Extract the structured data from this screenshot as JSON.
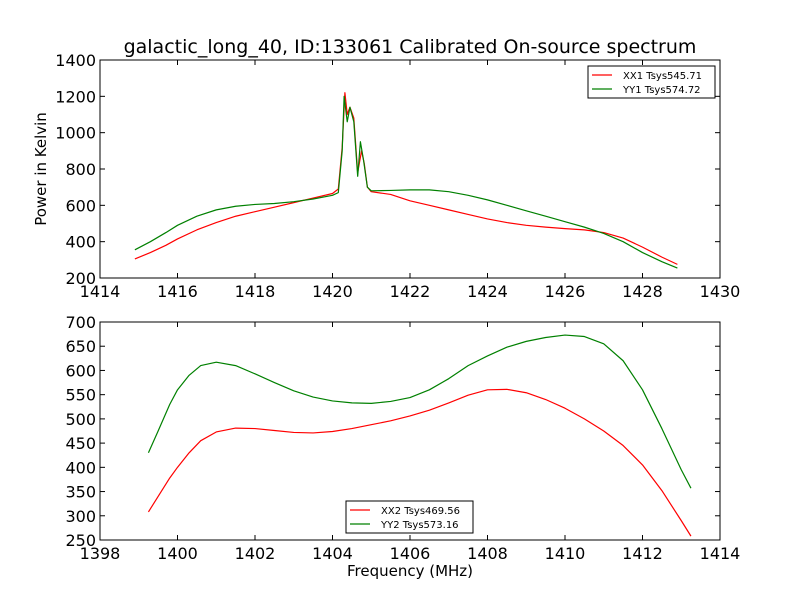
{
  "chart_data": [
    {
      "type": "line",
      "title": "galactic_long_40, ID:133061 Calibrated On-source spectrum",
      "xlabel": "",
      "ylabel": "Power in Kelvin",
      "xlim": [
        1414,
        1430
      ],
      "ylim": [
        200,
        1400
      ],
      "xticks": [
        1414,
        1416,
        1418,
        1420,
        1422,
        1424,
        1426,
        1428,
        1430
      ],
      "yticks": [
        200,
        400,
        600,
        800,
        1000,
        1200,
        1400
      ],
      "grid": false,
      "legend_position": "top-right",
      "series": [
        {
          "name": "XX1 Tsys545.71",
          "color": "#ff0000",
          "points": [
            [
              1414.9,
              305
            ],
            [
              1415.3,
              340
            ],
            [
              1415.7,
              380
            ],
            [
              1416.0,
              415
            ],
            [
              1416.5,
              465
            ],
            [
              1417.0,
              505
            ],
            [
              1417.5,
              540
            ],
            [
              1418.0,
              565
            ],
            [
              1418.5,
              590
            ],
            [
              1419.0,
              615
            ],
            [
              1419.5,
              640
            ],
            [
              1420.0,
              665
            ],
            [
              1420.15,
              690
            ],
            [
              1420.25,
              920
            ],
            [
              1420.32,
              1220
            ],
            [
              1420.38,
              1100
            ],
            [
              1420.45,
              1140
            ],
            [
              1420.55,
              1080
            ],
            [
              1420.65,
              780
            ],
            [
              1420.75,
              900
            ],
            [
              1420.82,
              830
            ],
            [
              1420.9,
              700
            ],
            [
              1421.0,
              675
            ],
            [
              1421.5,
              660
            ],
            [
              1422.0,
              625
            ],
            [
              1422.5,
              600
            ],
            [
              1423.0,
              575
            ],
            [
              1423.5,
              550
            ],
            [
              1424.0,
              525
            ],
            [
              1424.5,
              505
            ],
            [
              1425.0,
              490
            ],
            [
              1425.5,
              480
            ],
            [
              1426.0,
              472
            ],
            [
              1426.5,
              465
            ],
            [
              1427.0,
              450
            ],
            [
              1427.5,
              420
            ],
            [
              1428.0,
              370
            ],
            [
              1428.5,
              315
            ],
            [
              1428.9,
              275
            ]
          ]
        },
        {
          "name": "YY1 Tsys574.72",
          "color": "#008000",
          "points": [
            [
              1414.9,
              355
            ],
            [
              1415.3,
              400
            ],
            [
              1415.7,
              450
            ],
            [
              1416.0,
              490
            ],
            [
              1416.5,
              540
            ],
            [
              1417.0,
              575
            ],
            [
              1417.5,
              595
            ],
            [
              1418.0,
              605
            ],
            [
              1418.5,
              610
            ],
            [
              1419.0,
              620
            ],
            [
              1419.5,
              635
            ],
            [
              1420.0,
              655
            ],
            [
              1420.15,
              670
            ],
            [
              1420.25,
              900
            ],
            [
              1420.3,
              1200
            ],
            [
              1420.38,
              1060
            ],
            [
              1420.45,
              1140
            ],
            [
              1420.55,
              1060
            ],
            [
              1420.65,
              760
            ],
            [
              1420.72,
              950
            ],
            [
              1420.8,
              850
            ],
            [
              1420.9,
              700
            ],
            [
              1421.0,
              680
            ],
            [
              1421.5,
              682
            ],
            [
              1422.0,
              685
            ],
            [
              1422.5,
              685
            ],
            [
              1423.0,
              675
            ],
            [
              1423.5,
              655
            ],
            [
              1424.0,
              630
            ],
            [
              1424.5,
              600
            ],
            [
              1425.0,
              570
            ],
            [
              1425.5,
              540
            ],
            [
              1426.0,
              510
            ],
            [
              1426.5,
              480
            ],
            [
              1427.0,
              445
            ],
            [
              1427.5,
              400
            ],
            [
              1428.0,
              340
            ],
            [
              1428.5,
              290
            ],
            [
              1428.9,
              255
            ]
          ]
        }
      ]
    },
    {
      "type": "line",
      "title": "",
      "xlabel": "Frequency (MHz)",
      "ylabel": "",
      "xlim": [
        1398,
        1414
      ],
      "ylim": [
        250,
        700
      ],
      "xticks": [
        1398,
        1400,
        1402,
        1404,
        1406,
        1408,
        1410,
        1412,
        1414
      ],
      "yticks": [
        250,
        300,
        350,
        400,
        450,
        500,
        550,
        600,
        650,
        700
      ],
      "grid": false,
      "legend_position": "bottom-center",
      "series": [
        {
          "name": "XX2 Tsys469.56",
          "color": "#ff0000",
          "points": [
            [
              1399.25,
              308
            ],
            [
              1399.5,
              340
            ],
            [
              1399.8,
              378
            ],
            [
              1400.0,
              400
            ],
            [
              1400.3,
              430
            ],
            [
              1400.6,
              455
            ],
            [
              1401.0,
              473
            ],
            [
              1401.5,
              481
            ],
            [
              1402.0,
              480
            ],
            [
              1402.5,
              476
            ],
            [
              1403.0,
              472
            ],
            [
              1403.5,
              471
            ],
            [
              1404.0,
              474
            ],
            [
              1404.5,
              480
            ],
            [
              1405.0,
              488
            ],
            [
              1405.5,
              496
            ],
            [
              1406.0,
              506
            ],
            [
              1406.5,
              518
            ],
            [
              1407.0,
              533
            ],
            [
              1407.5,
              549
            ],
            [
              1408.0,
              560
            ],
            [
              1408.5,
              561
            ],
            [
              1409.0,
              554
            ],
            [
              1409.5,
              540
            ],
            [
              1410.0,
              522
            ],
            [
              1410.5,
              500
            ],
            [
              1411.0,
              475
            ],
            [
              1411.5,
              445
            ],
            [
              1412.0,
              405
            ],
            [
              1412.5,
              352
            ],
            [
              1413.0,
              290
            ],
            [
              1413.25,
              258
            ]
          ]
        },
        {
          "name": "YY2 Tsys573.16",
          "color": "#008000",
          "points": [
            [
              1399.25,
              430
            ],
            [
              1399.5,
              475
            ],
            [
              1399.8,
              530
            ],
            [
              1400.0,
              560
            ],
            [
              1400.3,
              590
            ],
            [
              1400.6,
              610
            ],
            [
              1401.0,
              617
            ],
            [
              1401.5,
              610
            ],
            [
              1402.0,
              593
            ],
            [
              1402.5,
              575
            ],
            [
              1403.0,
              558
            ],
            [
              1403.5,
              545
            ],
            [
              1404.0,
              537
            ],
            [
              1404.5,
              533
            ],
            [
              1405.0,
              532
            ],
            [
              1405.5,
              536
            ],
            [
              1406.0,
              544
            ],
            [
              1406.5,
              560
            ],
            [
              1407.0,
              583
            ],
            [
              1407.5,
              610
            ],
            [
              1408.0,
              630
            ],
            [
              1408.5,
              648
            ],
            [
              1409.0,
              660
            ],
            [
              1409.5,
              668
            ],
            [
              1410.0,
              673
            ],
            [
              1410.5,
              670
            ],
            [
              1411.0,
              655
            ],
            [
              1411.5,
              620
            ],
            [
              1412.0,
              560
            ],
            [
              1412.5,
              480
            ],
            [
              1413.0,
              395
            ],
            [
              1413.25,
              357
            ]
          ]
        }
      ]
    }
  ]
}
